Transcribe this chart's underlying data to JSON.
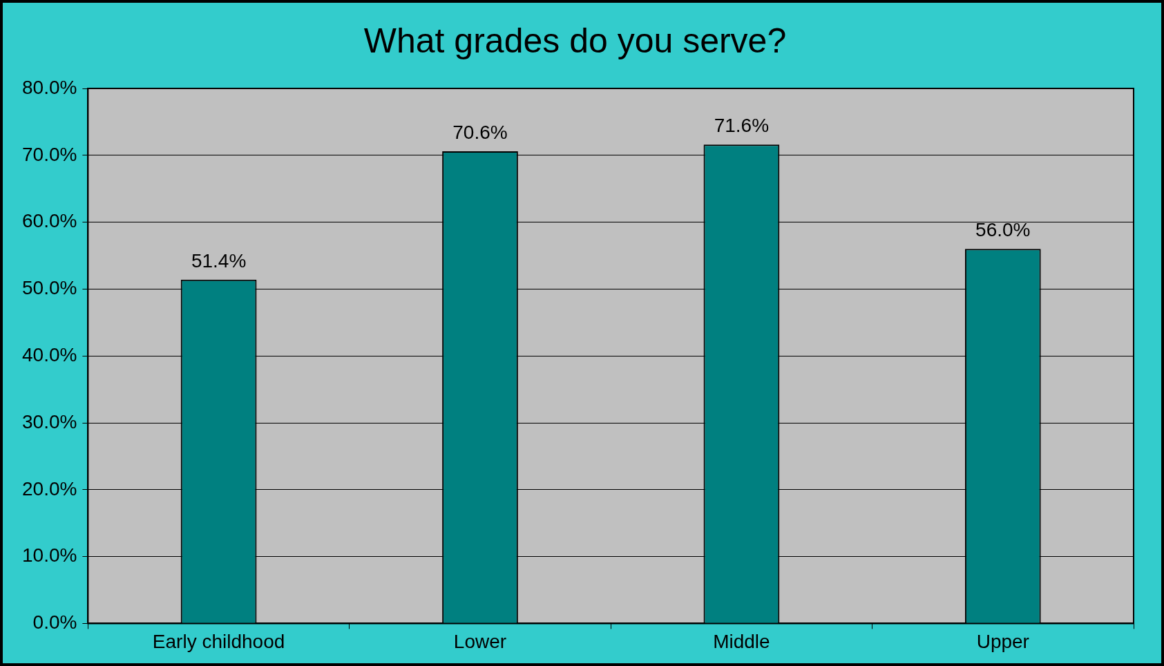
{
  "chart_data": {
    "type": "bar",
    "title": "What grades do you serve?",
    "categories": [
      "Early childhood",
      "Lower",
      "Middle",
      "Upper"
    ],
    "values": [
      51.4,
      70.6,
      71.6,
      56.0
    ],
    "value_labels": [
      "51.4%",
      "70.6%",
      "71.6%",
      "56.0%"
    ],
    "color": "#008080",
    "ylim": [
      0,
      80
    ],
    "yticks": [
      {
        "value": 0,
        "label": "0.0%"
      },
      {
        "value": 10,
        "label": "10.0%"
      },
      {
        "value": 20,
        "label": "20.0%"
      },
      {
        "value": 30,
        "label": "30.0%"
      },
      {
        "value": 40,
        "label": "40.0%"
      },
      {
        "value": 50,
        "label": "50.0%"
      },
      {
        "value": 60,
        "label": "60.0%"
      },
      {
        "value": 70,
        "label": "70.0%"
      },
      {
        "value": 80,
        "label": "80.0%"
      }
    ],
    "grid": "y",
    "legend": false
  }
}
